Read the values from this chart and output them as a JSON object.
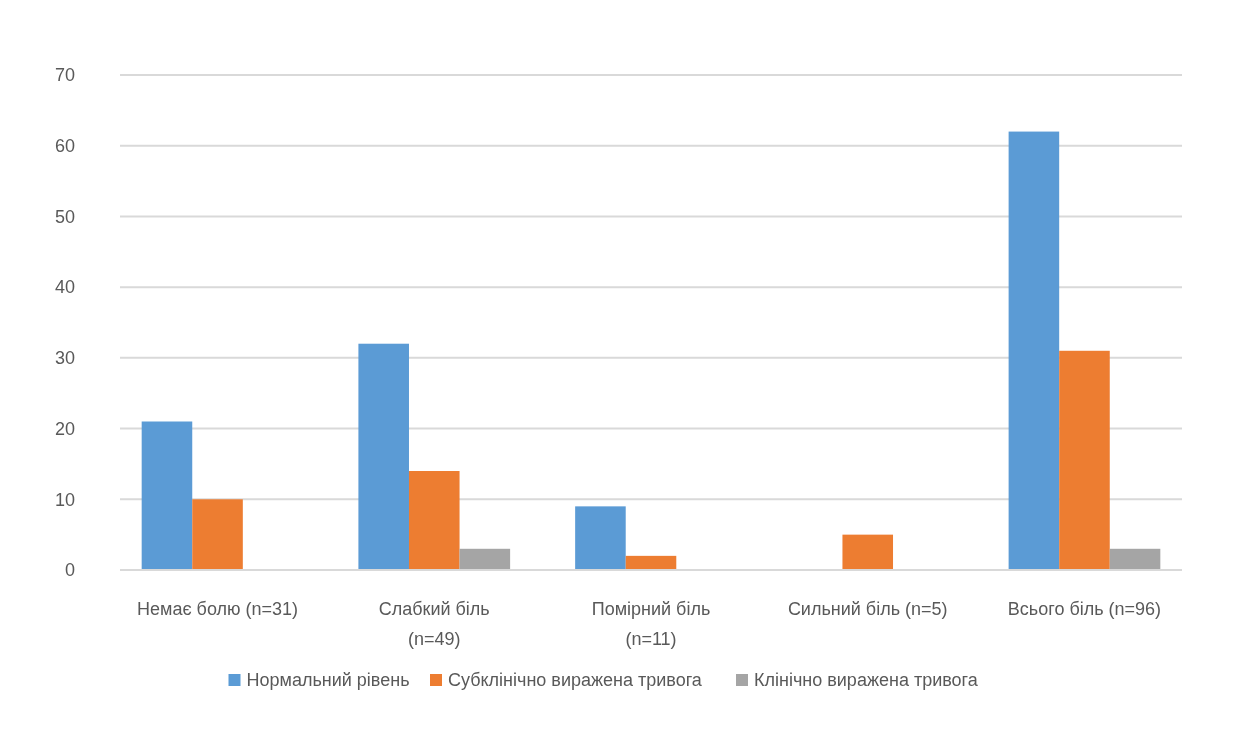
{
  "chart_data": {
    "type": "bar",
    "categories": [
      "Немає болю (n=31)",
      "Слабкий біль (n=49)",
      "Помірний біль (n=11)",
      "Сильний біль (n=5)",
      "Всього біль (n=96)"
    ],
    "series": [
      {
        "name": "Нормальний рівень",
        "color": "#5b9bd5",
        "values": [
          21,
          32,
          9,
          0,
          62
        ]
      },
      {
        "name": "Субклінічно виражена тривога",
        "color": "#ed7d31",
        "values": [
          10,
          14,
          2,
          5,
          31
        ]
      },
      {
        "name": "Клінічно виражена тривога",
        "color": "#a5a5a5",
        "values": [
          0,
          3,
          0,
          0,
          3
        ]
      }
    ],
    "ylim": [
      0,
      70
    ],
    "yticks": [
      0,
      10,
      20,
      30,
      40,
      50,
      60,
      70
    ],
    "grid": "y",
    "legend": "bottom"
  }
}
